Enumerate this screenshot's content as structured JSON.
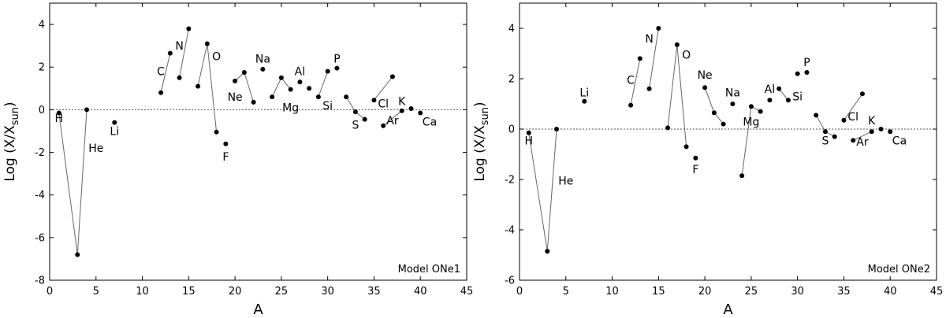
{
  "chart_data": [
    {
      "type": "scatter",
      "annotation": "Model ONe1",
      "xlabel": "A",
      "ylabel_main": "Log (X/X",
      "ylabel_sub": "sun",
      "ylabel_close": ")",
      "xlim": [
        0,
        45
      ],
      "ylim": [
        -8,
        5
      ],
      "xticks": [
        0,
        5,
        10,
        15,
        20,
        25,
        30,
        35,
        40,
        45
      ],
      "yticks": [
        -8,
        -6,
        -4,
        -2,
        0,
        2,
        4
      ],
      "grid": false,
      "reference_line": 0,
      "points": [
        {
          "x": 1,
          "y": -0.15
        },
        {
          "x": 3,
          "y": -6.8
        },
        {
          "x": 4,
          "y": 0.0
        },
        {
          "x": 7,
          "y": -0.6
        },
        {
          "x": 12,
          "y": 0.8
        },
        {
          "x": 13,
          "y": 2.65
        },
        {
          "x": 14,
          "y": 1.5
        },
        {
          "x": 15,
          "y": 3.8
        },
        {
          "x": 16,
          "y": 1.1
        },
        {
          "x": 17,
          "y": 3.1
        },
        {
          "x": 18,
          "y": -1.05
        },
        {
          "x": 19,
          "y": -1.6
        },
        {
          "x": 20,
          "y": 1.35
        },
        {
          "x": 21,
          "y": 1.75
        },
        {
          "x": 22,
          "y": 0.35
        },
        {
          "x": 23,
          "y": 1.9
        },
        {
          "x": 24,
          "y": 0.6
        },
        {
          "x": 25,
          "y": 1.5
        },
        {
          "x": 26,
          "y": 0.95
        },
        {
          "x": 27,
          "y": 1.3
        },
        {
          "x": 28,
          "y": 1.0
        },
        {
          "x": 29,
          "y": 0.6
        },
        {
          "x": 30,
          "y": 1.8
        },
        {
          "x": 31,
          "y": 1.95
        },
        {
          "x": 32,
          "y": 0.6
        },
        {
          "x": 33,
          "y": -0.1
        },
        {
          "x": 34,
          "y": -0.45
        },
        {
          "x": 35,
          "y": 0.45
        },
        {
          "x": 36,
          "y": -0.75
        },
        {
          "x": 37,
          "y": 1.55
        },
        {
          "x": 38,
          "y": -0.05
        },
        {
          "x": 39,
          "y": 0.05
        },
        {
          "x": 40,
          "y": -0.15
        }
      ],
      "connections": [
        [
          1,
          3
        ],
        [
          3,
          4
        ],
        [
          12,
          13
        ],
        [
          14,
          15
        ],
        [
          16,
          17
        ],
        [
          17,
          18
        ],
        [
          20,
          21
        ],
        [
          21,
          22
        ],
        [
          24,
          25
        ],
        [
          25,
          26
        ],
        [
          29,
          30
        ],
        [
          32,
          33
        ],
        [
          33,
          34
        ],
        [
          35,
          37
        ],
        [
          36,
          38
        ]
      ],
      "element_labels": [
        {
          "text": "H",
          "x": 1,
          "y": -0.4
        },
        {
          "text": "He",
          "x": 5,
          "y": -1.8
        },
        {
          "text": "Li",
          "x": 7,
          "y": -1.0
        },
        {
          "text": "C",
          "x": 12,
          "y": 1.8
        },
        {
          "text": "N",
          "x": 14,
          "y": 3.0
        },
        {
          "text": "O",
          "x": 18,
          "y": 2.5
        },
        {
          "text": "F",
          "x": 19,
          "y": -2.2
        },
        {
          "text": "Ne",
          "x": 20,
          "y": 0.6
        },
        {
          "text": "Na",
          "x": 23,
          "y": 2.4
        },
        {
          "text": "Mg",
          "x": 26,
          "y": 0.1
        },
        {
          "text": "Al",
          "x": 27,
          "y": 1.8
        },
        {
          "text": "Si",
          "x": 30,
          "y": 0.2
        },
        {
          "text": "P",
          "x": 31,
          "y": 2.4
        },
        {
          "text": "S",
          "x": 33,
          "y": -0.7
        },
        {
          "text": "Cl",
          "x": 36,
          "y": 0.3
        },
        {
          "text": "Ar",
          "x": 37,
          "y": -0.5
        },
        {
          "text": "K",
          "x": 38,
          "y": 0.4
        },
        {
          "text": "Ca",
          "x": 41,
          "y": -0.55
        }
      ]
    },
    {
      "type": "scatter",
      "annotation": "Model ONe2",
      "xlabel": "A",
      "ylabel_main": "Log (X/X",
      "ylabel_sub": "sun",
      "ylabel_close": ")",
      "xlim": [
        0,
        45
      ],
      "ylim": [
        -6,
        5
      ],
      "xticks": [
        0,
        5,
        10,
        15,
        20,
        25,
        30,
        35,
        40,
        45
      ],
      "yticks": [
        -6,
        -4,
        -2,
        0,
        2,
        4
      ],
      "grid": false,
      "reference_line": 0,
      "points": [
        {
          "x": 1,
          "y": -0.15
        },
        {
          "x": 3,
          "y": -4.85
        },
        {
          "x": 4,
          "y": 0.0
        },
        {
          "x": 7,
          "y": 1.1
        },
        {
          "x": 12,
          "y": 0.95
        },
        {
          "x": 13,
          "y": 2.8
        },
        {
          "x": 14,
          "y": 1.6
        },
        {
          "x": 15,
          "y": 4.0
        },
        {
          "x": 16,
          "y": 0.05
        },
        {
          "x": 17,
          "y": 3.35
        },
        {
          "x": 18,
          "y": -0.7
        },
        {
          "x": 19,
          "y": -1.15
        },
        {
          "x": 20,
          "y": 1.65
        },
        {
          "x": 21,
          "y": 0.65
        },
        {
          "x": 22,
          "y": 0.2
        },
        {
          "x": 23,
          "y": 1.0
        },
        {
          "x": 24,
          "y": -1.85
        },
        {
          "x": 25,
          "y": 0.9
        },
        {
          "x": 26,
          "y": 0.7
        },
        {
          "x": 27,
          "y": 1.15
        },
        {
          "x": 28,
          "y": 1.6
        },
        {
          "x": 29,
          "y": 1.15
        },
        {
          "x": 30,
          "y": 2.2
        },
        {
          "x": 31,
          "y": 2.25
        },
        {
          "x": 32,
          "y": 0.55
        },
        {
          "x": 33,
          "y": -0.1
        },
        {
          "x": 34,
          "y": -0.3
        },
        {
          "x": 35,
          "y": 0.35
        },
        {
          "x": 36,
          "y": -0.45
        },
        {
          "x": 37,
          "y": 1.4
        },
        {
          "x": 38,
          "y": -0.1
        },
        {
          "x": 39,
          "y": 0.0
        },
        {
          "x": 40,
          "y": -0.1
        }
      ],
      "connections": [
        [
          1,
          3
        ],
        [
          3,
          4
        ],
        [
          12,
          13
        ],
        [
          14,
          15
        ],
        [
          16,
          17
        ],
        [
          17,
          18
        ],
        [
          20,
          21
        ],
        [
          21,
          22
        ],
        [
          24,
          25
        ],
        [
          25,
          26
        ],
        [
          28,
          29
        ],
        [
          32,
          33
        ],
        [
          33,
          34
        ],
        [
          35,
          37
        ],
        [
          36,
          38
        ]
      ],
      "element_labels": [
        {
          "text": "H",
          "x": 1,
          "y": -0.45
        },
        {
          "text": "He",
          "x": 5,
          "y": -2.05
        },
        {
          "text": "Li",
          "x": 7,
          "y": 1.45
        },
        {
          "text": "C",
          "x": 12,
          "y": 1.95
        },
        {
          "text": "N",
          "x": 14,
          "y": 3.6
        },
        {
          "text": "O",
          "x": 18,
          "y": 2.95
        },
        {
          "text": "F",
          "x": 19,
          "y": -1.6
        },
        {
          "text": "Ne",
          "x": 20,
          "y": 2.15
        },
        {
          "text": "Na",
          "x": 23,
          "y": 1.45
        },
        {
          "text": "Mg",
          "x": 25,
          "y": 0.3
        },
        {
          "text": "Al",
          "x": 27,
          "y": 1.6
        },
        {
          "text": "Si",
          "x": 30,
          "y": 1.3
        },
        {
          "text": "P",
          "x": 31,
          "y": 2.65
        },
        {
          "text": "S",
          "x": 33,
          "y": -0.45
        },
        {
          "text": "Cl",
          "x": 36,
          "y": 0.5
        },
        {
          "text": "Ar",
          "x": 37,
          "y": -0.5
        },
        {
          "text": "K",
          "x": 38,
          "y": 0.35
        },
        {
          "text": "Ca",
          "x": 41,
          "y": -0.45
        }
      ]
    }
  ]
}
